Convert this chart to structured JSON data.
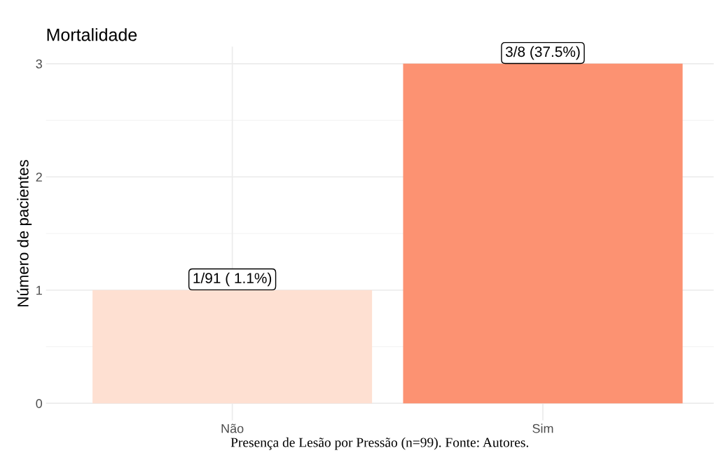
{
  "chart_data": {
    "type": "bar",
    "title": "Mortalidade",
    "ylabel": "Número de pacientes",
    "xlabel": "Presença de Lesão por Pressão (n=99). Fonte: Autores.",
    "categories": [
      "Não",
      "Sim"
    ],
    "values": [
      1,
      3
    ],
    "colors": [
      "#fee0d2",
      "#fc9272"
    ],
    "value_labels": [
      "1/91 ( 1.1%)",
      "3/8 (37.5%)"
    ],
    "ylim": [
      -0.15,
      3.15
    ],
    "yticks": [
      0,
      1,
      2,
      3
    ],
    "grid": true
  }
}
